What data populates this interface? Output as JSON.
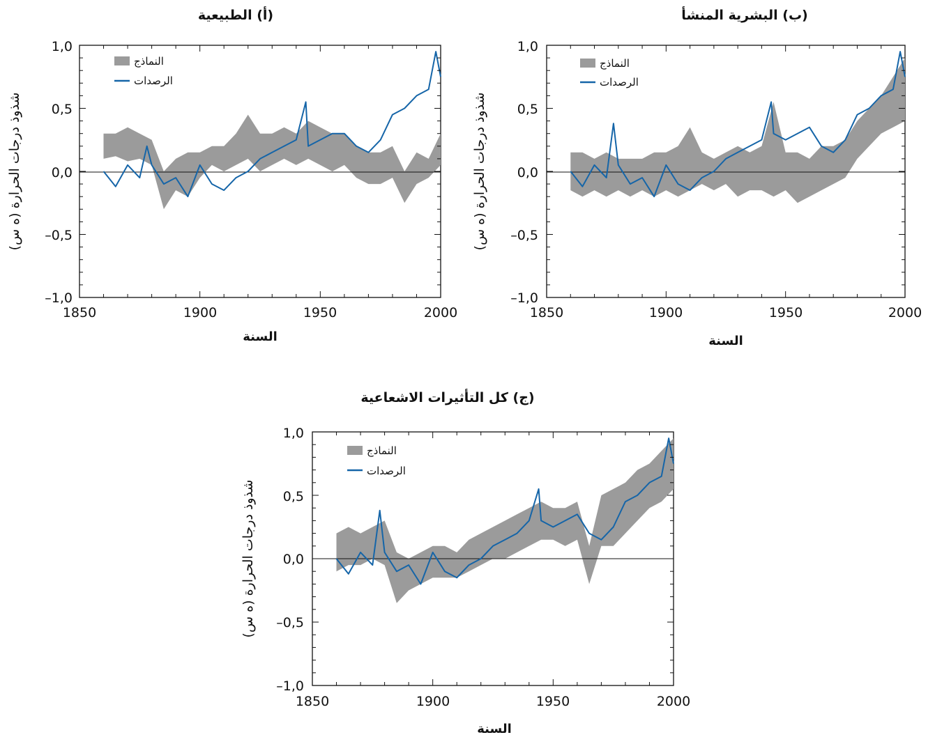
{
  "colors": {
    "models": "#9b9b9b",
    "observations": "#1565a8",
    "axis": "#111111"
  },
  "chart_data": [
    {
      "type": "area",
      "title": "(أ) الطبيعية",
      "xlabel": "السنة",
      "ylabel": "شذوذ درجات الحرارة (ه س)",
      "xlim": [
        1850,
        2000
      ],
      "ylim": [
        -1.0,
        1.0
      ],
      "x_ticks": [
        "1850",
        "1900",
        "1950",
        "2000"
      ],
      "y_ticks": [
        "1,0",
        "0,5",
        "0,0",
        "–0,5",
        "–1,0"
      ],
      "legend": {
        "placement": "top-left",
        "entries": [
          "النماذج",
          "الرصدات"
        ]
      },
      "series": [
        {
          "name": "النماذج",
          "kind": "band",
          "x": [
            1860,
            1865,
            1870,
            1875,
            1880,
            1885,
            1890,
            1895,
            1900,
            1905,
            1910,
            1915,
            1920,
            1925,
            1930,
            1935,
            1940,
            1945,
            1950,
            1955,
            1960,
            1965,
            1970,
            1975,
            1980,
            1985,
            1990,
            1995,
            2000
          ],
          "low": [
            0.1,
            0.12,
            0.08,
            0.1,
            0.05,
            -0.3,
            -0.15,
            -0.2,
            -0.05,
            0.05,
            0.0,
            0.05,
            0.1,
            0.0,
            0.05,
            0.1,
            0.05,
            0.1,
            0.05,
            0.0,
            0.05,
            -0.05,
            -0.1,
            -0.1,
            -0.05,
            -0.25,
            -0.1,
            -0.05,
            0.05
          ],
          "high": [
            0.3,
            0.3,
            0.35,
            0.3,
            0.25,
            0.0,
            0.1,
            0.15,
            0.15,
            0.2,
            0.2,
            0.3,
            0.45,
            0.3,
            0.3,
            0.35,
            0.3,
            0.4,
            0.35,
            0.3,
            0.3,
            0.2,
            0.15,
            0.15,
            0.2,
            0.0,
            0.15,
            0.1,
            0.3
          ]
        },
        {
          "name": "الرصدات",
          "kind": "line",
          "x": [
            1860,
            1865,
            1870,
            1875,
            1878,
            1880,
            1885,
            1890,
            1895,
            1900,
            1905,
            1910,
            1915,
            1920,
            1925,
            1930,
            1935,
            1940,
            1944,
            1945,
            1950,
            1955,
            1960,
            1965,
            1970,
            1975,
            1980,
            1985,
            1990,
            1995,
            1998,
            2000
          ],
          "y": [
            0.0,
            -0.12,
            0.05,
            -0.05,
            0.2,
            0.05,
            -0.1,
            -0.05,
            -0.2,
            0.05,
            -0.1,
            -0.15,
            -0.05,
            0.0,
            0.1,
            0.15,
            0.2,
            0.25,
            0.55,
            0.2,
            0.25,
            0.3,
            0.3,
            0.2,
            0.15,
            0.25,
            0.45,
            0.5,
            0.6,
            0.65,
            0.95,
            0.75
          ]
        }
      ]
    },
    {
      "type": "area",
      "title": "(ب) البشرية المنشأ",
      "xlabel": "السنة",
      "ylabel": "شذوذ درجات الحرارة (ه س)",
      "xlim": [
        1850,
        2000
      ],
      "ylim": [
        -1.0,
        1.0
      ],
      "x_ticks": [
        "1850",
        "1900",
        "1950",
        "2000"
      ],
      "y_ticks": [
        "1,0",
        "0,5",
        "0,0",
        "–0,5",
        "–1,0"
      ],
      "legend": {
        "placement": "top-left",
        "entries": [
          "النماذج",
          "الرصدات"
        ]
      },
      "series": [
        {
          "name": "النماذج",
          "kind": "band",
          "x": [
            1860,
            1865,
            1870,
            1875,
            1880,
            1885,
            1890,
            1895,
            1900,
            1905,
            1910,
            1915,
            1920,
            1925,
            1930,
            1935,
            1940,
            1945,
            1950,
            1955,
            1960,
            1965,
            1970,
            1975,
            1980,
            1985,
            1990,
            1995,
            2000
          ],
          "low": [
            -0.15,
            -0.2,
            -0.15,
            -0.2,
            -0.15,
            -0.2,
            -0.15,
            -0.2,
            -0.15,
            -0.2,
            -0.15,
            -0.1,
            -0.15,
            -0.1,
            -0.2,
            -0.15,
            -0.15,
            -0.2,
            -0.15,
            -0.25,
            -0.2,
            -0.15,
            -0.1,
            -0.05,
            0.1,
            0.2,
            0.3,
            0.35,
            0.4
          ],
          "high": [
            0.15,
            0.15,
            0.1,
            0.15,
            0.1,
            0.1,
            0.1,
            0.15,
            0.15,
            0.2,
            0.35,
            0.15,
            0.1,
            0.15,
            0.2,
            0.15,
            0.2,
            0.55,
            0.15,
            0.15,
            0.1,
            0.2,
            0.2,
            0.25,
            0.4,
            0.5,
            0.6,
            0.75,
            0.9
          ]
        },
        {
          "name": "الرصدات",
          "kind": "line",
          "x": [
            1860,
            1865,
            1870,
            1875,
            1878,
            1880,
            1885,
            1890,
            1895,
            1900,
            1905,
            1910,
            1915,
            1920,
            1925,
            1930,
            1935,
            1940,
            1944,
            1945,
            1950,
            1955,
            1960,
            1965,
            1970,
            1975,
            1980,
            1985,
            1990,
            1995,
            1998,
            2000
          ],
          "y": [
            0.0,
            -0.12,
            0.05,
            -0.05,
            0.38,
            0.05,
            -0.1,
            -0.05,
            -0.2,
            0.05,
            -0.1,
            -0.15,
            -0.05,
            0.0,
            0.1,
            0.15,
            0.2,
            0.25,
            0.55,
            0.3,
            0.25,
            0.3,
            0.35,
            0.2,
            0.15,
            0.25,
            0.45,
            0.5,
            0.6,
            0.65,
            0.95,
            0.75
          ]
        }
      ]
    },
    {
      "type": "area",
      "title": "(ج) كل التأثيرات الاشعاعية",
      "xlabel": "السنة",
      "ylabel": "شذوذ درجات الحرارة (ه س)",
      "xlim": [
        1850,
        2000
      ],
      "ylim": [
        -1.0,
        1.0
      ],
      "x_ticks": [
        "1850",
        "1900",
        "1950",
        "2000"
      ],
      "y_ticks": [
        "1,0",
        "0,5",
        "0,0",
        "–0,5",
        "–1,0"
      ],
      "legend": {
        "placement": "top-left",
        "entries": [
          "النماذج",
          "الرصدات"
        ]
      },
      "series": [
        {
          "name": "النماذج",
          "kind": "band",
          "x": [
            1860,
            1865,
            1870,
            1875,
            1880,
            1885,
            1890,
            1895,
            1900,
            1905,
            1910,
            1915,
            1920,
            1925,
            1930,
            1935,
            1940,
            1945,
            1950,
            1955,
            1960,
            1965,
            1970,
            1975,
            1980,
            1985,
            1990,
            1995,
            2000
          ],
          "low": [
            -0.1,
            -0.05,
            -0.05,
            0.0,
            -0.05,
            -0.35,
            -0.25,
            -0.2,
            -0.15,
            -0.15,
            -0.15,
            -0.1,
            -0.05,
            0.0,
            0.0,
            0.05,
            0.1,
            0.15,
            0.15,
            0.1,
            0.15,
            -0.2,
            0.1,
            0.1,
            0.2,
            0.3,
            0.4,
            0.45,
            0.55
          ],
          "high": [
            0.2,
            0.25,
            0.2,
            0.25,
            0.3,
            0.05,
            0.0,
            0.05,
            0.1,
            0.1,
            0.05,
            0.15,
            0.2,
            0.25,
            0.3,
            0.35,
            0.4,
            0.45,
            0.4,
            0.4,
            0.45,
            0.1,
            0.5,
            0.55,
            0.6,
            0.7,
            0.75,
            0.85,
            0.95
          ]
        },
        {
          "name": "الرصدات",
          "kind": "line",
          "x": [
            1860,
            1865,
            1870,
            1875,
            1878,
            1880,
            1885,
            1890,
            1895,
            1900,
            1905,
            1910,
            1915,
            1920,
            1925,
            1930,
            1935,
            1940,
            1944,
            1945,
            1950,
            1955,
            1960,
            1965,
            1970,
            1975,
            1980,
            1985,
            1990,
            1995,
            1998,
            2000
          ],
          "y": [
            0.0,
            -0.12,
            0.05,
            -0.05,
            0.38,
            0.05,
            -0.1,
            -0.05,
            -0.2,
            0.05,
            -0.1,
            -0.15,
            -0.05,
            0.0,
            0.1,
            0.15,
            0.2,
            0.3,
            0.55,
            0.3,
            0.25,
            0.3,
            0.35,
            0.2,
            0.15,
            0.25,
            0.45,
            0.5,
            0.6,
            0.65,
            0.95,
            0.75
          ]
        }
      ]
    }
  ]
}
